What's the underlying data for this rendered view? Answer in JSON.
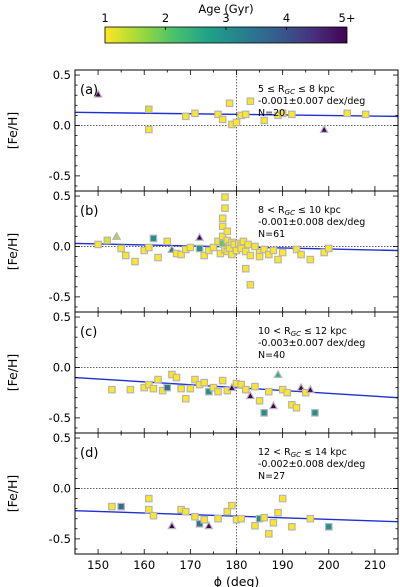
{
  "colorbar": {
    "label": "Age (Gyr)",
    "ticks": [
      "1",
      "2",
      "3",
      "4",
      "5+"
    ],
    "range": [
      1,
      5
    ],
    "colors": [
      "#fde725",
      "#a0da39",
      "#4ac16d",
      "#1fa187",
      "#277f8e",
      "#365c8d",
      "#46327e",
      "#440154"
    ]
  },
  "styles": {
    "fit_line_color": "#1f2fd0",
    "marker_edge_color": "#b5b5b5",
    "ref_line_color": "#000000"
  },
  "chart_data": [
    {
      "type": "scatter",
      "panel_label": "(a)",
      "ylabel": "[Fe/H]",
      "xlim": [
        145,
        215
      ],
      "ylim": [
        -0.65,
        0.55
      ],
      "yticks": [
        "0.5",
        "0.0",
        "-0.5"
      ],
      "annotation": [
        "5 ≤ R",
        "GC",
        " ≤ 8 kpc"
      ],
      "slope_text": "-0.001±0.007 dex/deg",
      "n_text": "N=20",
      "fit": {
        "x": [
          145,
          215
        ],
        "y": [
          0.13,
          0.09
        ]
      },
      "points": [
        {
          "x": 150,
          "y": 0.31,
          "age": 5,
          "m": "tri"
        },
        {
          "x": 161,
          "y": 0.16,
          "age": 1.2,
          "m": "sq"
        },
        {
          "x": 161,
          "y": -0.04,
          "age": 1.0,
          "m": "sq"
        },
        {
          "x": 169,
          "y": 0.09,
          "age": 1.0,
          "m": "sq"
        },
        {
          "x": 171,
          "y": 0.12,
          "age": 1.0,
          "m": "sq"
        },
        {
          "x": 176,
          "y": 0.11,
          "age": 1.0,
          "m": "sq"
        },
        {
          "x": 177,
          "y": 0.06,
          "age": 1.0,
          "m": "sq"
        },
        {
          "x": 178.5,
          "y": 0.22,
          "age": 1.0,
          "m": "sq"
        },
        {
          "x": 179,
          "y": 0.01,
          "age": 1.0,
          "m": "sq"
        },
        {
          "x": 180,
          "y": 0.03,
          "age": 1.0,
          "m": "sq"
        },
        {
          "x": 181,
          "y": 0.1,
          "age": 1.0,
          "m": "sq"
        },
        {
          "x": 182,
          "y": 0.11,
          "age": 1.0,
          "m": "sq"
        },
        {
          "x": 183,
          "y": 0.24,
          "age": 1.0,
          "m": "sq"
        },
        {
          "x": 186,
          "y": 0.05,
          "age": 1.0,
          "m": "sq"
        },
        {
          "x": 189,
          "y": 0.1,
          "age": 1.0,
          "m": "sq"
        },
        {
          "x": 190,
          "y": 0.12,
          "age": 1.0,
          "m": "sq"
        },
        {
          "x": 192,
          "y": 0.11,
          "age": 1.0,
          "m": "sq"
        },
        {
          "x": 204,
          "y": 0.12,
          "age": 1.0,
          "m": "sq"
        },
        {
          "x": 208,
          "y": 0.11,
          "age": 1.0,
          "m": "sq"
        },
        {
          "x": 199,
          "y": -0.04,
          "age": 5,
          "m": "tri"
        }
      ]
    },
    {
      "type": "scatter",
      "panel_label": "(b)",
      "ylabel": "[Fe/H]",
      "xlim": [
        145,
        215
      ],
      "ylim": [
        -0.65,
        0.55
      ],
      "yticks": [
        "0.5",
        "0.0",
        "-0.5"
      ],
      "annotation": [
        "8 < R",
        "GC",
        " ≤ 10 kpc"
      ],
      "slope_text": "-0.001±0.008 dex/deg",
      "n_text": "N=61",
      "fit": {
        "x": [
          145,
          215
        ],
        "y": [
          0.03,
          -0.04
        ]
      },
      "points": [
        {
          "x": 152,
          "y": 0.06,
          "age": 1.2,
          "m": "sq"
        },
        {
          "x": 154,
          "y": 0.1,
          "age": 1.5,
          "m": "tri"
        },
        {
          "x": 156,
          "y": -0.09,
          "age": 1.0,
          "m": "sq"
        },
        {
          "x": 158,
          "y": -0.15,
          "age": 1.0,
          "m": "sq"
        },
        {
          "x": 160,
          "y": -0.04,
          "age": 1.0,
          "m": "sq"
        },
        {
          "x": 161,
          "y": -0.01,
          "age": 1.0,
          "m": "sq"
        },
        {
          "x": 162,
          "y": 0.08,
          "age": 3.0,
          "m": "sq"
        },
        {
          "x": 163,
          "y": -0.11,
          "age": 1.0,
          "m": "sq"
        },
        {
          "x": 165,
          "y": 0.05,
          "age": 1.0,
          "m": "sq"
        },
        {
          "x": 166,
          "y": -0.03,
          "age": 3.5,
          "m": "tri"
        },
        {
          "x": 167,
          "y": -0.07,
          "age": 1.0,
          "m": "sq"
        },
        {
          "x": 168,
          "y": -0.08,
          "age": 1.0,
          "m": "sq"
        },
        {
          "x": 169,
          "y": -0.03,
          "age": 1.0,
          "m": "sq"
        },
        {
          "x": 170,
          "y": -0.01,
          "age": 1.0,
          "m": "sq"
        },
        {
          "x": 172,
          "y": 0.09,
          "age": 5,
          "m": "tri"
        },
        {
          "x": 172,
          "y": -0.02,
          "age": 3.0,
          "m": "sq"
        },
        {
          "x": 173,
          "y": -0.09,
          "age": 1.0,
          "m": "sq"
        },
        {
          "x": 174,
          "y": -0.04,
          "age": 1.0,
          "m": "sq"
        },
        {
          "x": 175,
          "y": -0.01,
          "age": 1.0,
          "m": "sq"
        },
        {
          "x": 176,
          "y": 0.05,
          "age": 1.0,
          "m": "sq"
        },
        {
          "x": 176.5,
          "y": -0.07,
          "age": 1.0,
          "m": "sq"
        },
        {
          "x": 177,
          "y": 0.28,
          "age": 1.0,
          "m": "sq"
        },
        {
          "x": 177,
          "y": 0.2,
          "age": 1.0,
          "m": "sq"
        },
        {
          "x": 177,
          "y": 0.1,
          "age": 1.0,
          "m": "sq"
        },
        {
          "x": 177,
          "y": 0.03,
          "age": 2.0,
          "m": "sq"
        },
        {
          "x": 177.5,
          "y": 0.49,
          "age": 1.0,
          "m": "sq"
        },
        {
          "x": 177.5,
          "y": 0.38,
          "age": 1.0,
          "m": "sq"
        },
        {
          "x": 177.5,
          "y": -0.03,
          "age": 1.0,
          "m": "sq"
        },
        {
          "x": 178,
          "y": 0.15,
          "age": 1.0,
          "m": "sq"
        },
        {
          "x": 178,
          "y": 0.06,
          "age": 1.0,
          "m": "sq"
        },
        {
          "x": 178,
          "y": -0.05,
          "age": 1.0,
          "m": "sq"
        },
        {
          "x": 178.5,
          "y": 0.01,
          "age": 1.0,
          "m": "sq"
        },
        {
          "x": 178.5,
          "y": -0.02,
          "age": 1.0,
          "m": "sq"
        },
        {
          "x": 179,
          "y": 0.04,
          "age": 1.0,
          "m": "sq"
        },
        {
          "x": 179,
          "y": -0.08,
          "age": 1.0,
          "m": "sq"
        },
        {
          "x": 179.5,
          "y": 0.02,
          "age": 1.0,
          "m": "sq"
        },
        {
          "x": 180,
          "y": -0.04,
          "age": 1.0,
          "m": "sq"
        },
        {
          "x": 180.5,
          "y": 0.03,
          "age": 1.0,
          "m": "sq"
        },
        {
          "x": 181,
          "y": 0.01,
          "age": 1.0,
          "m": "sq"
        },
        {
          "x": 181,
          "y": -0.02,
          "age": 1.0,
          "m": "sq"
        },
        {
          "x": 181.5,
          "y": 0.05,
          "age": 1.0,
          "m": "sq"
        },
        {
          "x": 182,
          "y": -0.05,
          "age": 1.0,
          "m": "sq"
        },
        {
          "x": 182,
          "y": -0.22,
          "age": 1.0,
          "m": "sq"
        },
        {
          "x": 182.5,
          "y": 0.02,
          "age": 1.0,
          "m": "sq"
        },
        {
          "x": 183,
          "y": -0.09,
          "age": 1.0,
          "m": "sq"
        },
        {
          "x": 183,
          "y": -0.38,
          "age": 1.0,
          "m": "sq"
        },
        {
          "x": 184,
          "y": 0.0,
          "age": 1.0,
          "m": "sq"
        },
        {
          "x": 185,
          "y": -0.06,
          "age": 1.0,
          "m": "sq"
        },
        {
          "x": 185,
          "y": -0.1,
          "age": 1.0,
          "m": "sq"
        },
        {
          "x": 186,
          "y": -0.03,
          "age": 1.0,
          "m": "sq"
        },
        {
          "x": 187,
          "y": -0.08,
          "age": 1.0,
          "m": "sq"
        },
        {
          "x": 188,
          "y": -0.04,
          "age": 1.0,
          "m": "sq"
        },
        {
          "x": 189,
          "y": -0.13,
          "age": 1.0,
          "m": "sq"
        },
        {
          "x": 190,
          "y": -0.06,
          "age": 1.0,
          "m": "sq"
        },
        {
          "x": 193,
          "y": -0.03,
          "age": 1.0,
          "m": "sq"
        },
        {
          "x": 194,
          "y": -0.08,
          "age": 1.0,
          "m": "sq"
        },
        {
          "x": 196,
          "y": -0.13,
          "age": 1.0,
          "m": "sq"
        },
        {
          "x": 199,
          "y": -0.06,
          "age": 1.0,
          "m": "sq"
        },
        {
          "x": 200,
          "y": -0.02,
          "age": 1.0,
          "m": "sq"
        },
        {
          "x": 150,
          "y": 0.02,
          "age": 1.0,
          "m": "sq"
        },
        {
          "x": 155,
          "y": -0.02,
          "age": 1.0,
          "m": "sq"
        }
      ]
    },
    {
      "type": "scatter",
      "panel_label": "(c)",
      "ylabel": "[Fe/H]",
      "xlim": [
        145,
        215
      ],
      "ylim": [
        -0.65,
        0.55
      ],
      "yticks": [
        "0.5",
        "0.0",
        "-0.5"
      ],
      "annotation": [
        "10 < R",
        "GC",
        " ≤ 12 kpc"
      ],
      "slope_text": "-0.003±0.007 dex/deg",
      "n_text": "N=40",
      "fit": {
        "x": [
          145,
          215
        ],
        "y": [
          -0.1,
          -0.3
        ]
      },
      "points": [
        {
          "x": 160,
          "y": -0.2,
          "age": 1.0,
          "m": "sq"
        },
        {
          "x": 161,
          "y": -0.17,
          "age": 1.0,
          "m": "sq"
        },
        {
          "x": 162,
          "y": -0.21,
          "age": 1.0,
          "m": "sq"
        },
        {
          "x": 163,
          "y": -0.12,
          "age": 1.0,
          "m": "sq"
        },
        {
          "x": 164,
          "y": -0.23,
          "age": 1.0,
          "m": "sq"
        },
        {
          "x": 165,
          "y": -0.2,
          "age": 3.5,
          "m": "sq"
        },
        {
          "x": 166,
          "y": -0.07,
          "age": 1.0,
          "m": "sq"
        },
        {
          "x": 167,
          "y": -0.1,
          "age": 1.0,
          "m": "sq"
        },
        {
          "x": 168,
          "y": -0.21,
          "age": 1.0,
          "m": "sq"
        },
        {
          "x": 169,
          "y": -0.31,
          "age": 1.0,
          "m": "sq"
        },
        {
          "x": 170,
          "y": -0.21,
          "age": 1.0,
          "m": "sq"
        },
        {
          "x": 171,
          "y": -0.12,
          "age": 1.0,
          "m": "sq"
        },
        {
          "x": 172,
          "y": -0.17,
          "age": 1.0,
          "m": "sq"
        },
        {
          "x": 173,
          "y": -0.15,
          "age": 1.0,
          "m": "sq"
        },
        {
          "x": 174,
          "y": -0.24,
          "age": 3.0,
          "m": "sq"
        },
        {
          "x": 175,
          "y": -0.2,
          "age": 1.0,
          "m": "sq"
        },
        {
          "x": 176,
          "y": -0.24,
          "age": 1.0,
          "m": "sq"
        },
        {
          "x": 177,
          "y": -0.13,
          "age": 1.0,
          "m": "sq"
        },
        {
          "x": 178,
          "y": -0.23,
          "age": 1.0,
          "m": "sq"
        },
        {
          "x": 179,
          "y": -0.2,
          "age": 5,
          "m": "tri"
        },
        {
          "x": 180,
          "y": -0.16,
          "age": 1.0,
          "m": "sq"
        },
        {
          "x": 181,
          "y": -0.17,
          "age": 1.0,
          "m": "sq"
        },
        {
          "x": 182,
          "y": -0.22,
          "age": 1.0,
          "m": "sq"
        },
        {
          "x": 183,
          "y": -0.28,
          "age": 5,
          "m": "tri"
        },
        {
          "x": 184,
          "y": -0.19,
          "age": 1.0,
          "m": "sq"
        },
        {
          "x": 185,
          "y": -0.33,
          "age": 1.0,
          "m": "sq"
        },
        {
          "x": 186,
          "y": -0.45,
          "age": 3.0,
          "m": "sq"
        },
        {
          "x": 187,
          "y": -0.24,
          "age": 1.0,
          "m": "sq"
        },
        {
          "x": 188,
          "y": -0.38,
          "age": 5,
          "m": "tri"
        },
        {
          "x": 189,
          "y": -0.07,
          "age": 2.5,
          "m": "tri"
        },
        {
          "x": 190,
          "y": -0.22,
          "age": 1.0,
          "m": "sq"
        },
        {
          "x": 191,
          "y": -0.25,
          "age": 1.0,
          "m": "sq"
        },
        {
          "x": 192,
          "y": -0.37,
          "age": 1.0,
          "m": "sq"
        },
        {
          "x": 193,
          "y": -0.4,
          "age": 1.0,
          "m": "sq"
        },
        {
          "x": 194,
          "y": -0.2,
          "age": 5,
          "m": "tri"
        },
        {
          "x": 195,
          "y": -0.25,
          "age": 1.0,
          "m": "sq"
        },
        {
          "x": 196,
          "y": -0.22,
          "age": 5,
          "m": "tri"
        },
        {
          "x": 197,
          "y": -0.45,
          "age": 3.0,
          "m": "sq"
        },
        {
          "x": 157,
          "y": -0.22,
          "age": 1.0,
          "m": "sq"
        },
        {
          "x": 153,
          "y": -0.22,
          "age": 1.0,
          "m": "sq"
        }
      ]
    },
    {
      "type": "scatter",
      "panel_label": "(d)",
      "ylabel": "[Fe/H]",
      "xlabel": "ϕ (deg)",
      "xlim": [
        145,
        215
      ],
      "ylim": [
        -0.65,
        0.55
      ],
      "yticks": [
        "0.5",
        "0.0",
        "-0.5"
      ],
      "xticks": [
        "150",
        "160",
        "170",
        "180",
        "190",
        "200",
        "210"
      ],
      "annotation": [
        "12 < R",
        "GC",
        " ≤ 14 kpc"
      ],
      "slope_text": "-0.002±0.008 dex/deg",
      "n_text": "N=27",
      "fit": {
        "x": [
          145,
          215
        ],
        "y": [
          -0.22,
          -0.33
        ]
      },
      "points": [
        {
          "x": 153,
          "y": -0.18,
          "age": 1.0,
          "m": "sq"
        },
        {
          "x": 155,
          "y": -0.18,
          "age": 3.5,
          "m": "sq"
        },
        {
          "x": 161,
          "y": -0.1,
          "age": 1.0,
          "m": "sq"
        },
        {
          "x": 161,
          "y": -0.21,
          "age": 1.0,
          "m": "sq"
        },
        {
          "x": 162,
          "y": -0.27,
          "age": 1.0,
          "m": "sq"
        },
        {
          "x": 166,
          "y": -0.37,
          "age": 5,
          "m": "tri"
        },
        {
          "x": 168,
          "y": -0.21,
          "age": 1.0,
          "m": "sq"
        },
        {
          "x": 169,
          "y": -0.23,
          "age": 1.0,
          "m": "sq"
        },
        {
          "x": 171,
          "y": -0.28,
          "age": 1.0,
          "m": "sq"
        },
        {
          "x": 172,
          "y": -0.35,
          "age": 3.5,
          "m": "sq"
        },
        {
          "x": 173,
          "y": -0.31,
          "age": 1.0,
          "m": "sq"
        },
        {
          "x": 174,
          "y": -0.37,
          "age": 5,
          "m": "tri"
        },
        {
          "x": 176,
          "y": -0.3,
          "age": 1.0,
          "m": "sq"
        },
        {
          "x": 178,
          "y": -0.23,
          "age": 1.0,
          "m": "sq"
        },
        {
          "x": 179,
          "y": -0.17,
          "age": 1.0,
          "m": "sq"
        },
        {
          "x": 180,
          "y": -0.31,
          "age": 1.0,
          "m": "sq"
        },
        {
          "x": 181,
          "y": -0.3,
          "age": 1.0,
          "m": "sq"
        },
        {
          "x": 184,
          "y": -0.37,
          "age": 1.0,
          "m": "sq"
        },
        {
          "x": 185,
          "y": -0.3,
          "age": 3.0,
          "m": "sq"
        },
        {
          "x": 186,
          "y": -0.29,
          "age": 1.0,
          "m": "sq"
        },
        {
          "x": 187,
          "y": -0.45,
          "age": 1.0,
          "m": "sq"
        },
        {
          "x": 188,
          "y": -0.34,
          "age": 1.0,
          "m": "sq"
        },
        {
          "x": 189,
          "y": -0.24,
          "age": 1.0,
          "m": "sq"
        },
        {
          "x": 190,
          "y": -0.1,
          "age": 1.0,
          "m": "sq"
        },
        {
          "x": 192,
          "y": -0.38,
          "age": 1.0,
          "m": "sq"
        },
        {
          "x": 196,
          "y": -0.3,
          "age": 1.0,
          "m": "sq"
        },
        {
          "x": 200,
          "y": -0.38,
          "age": 3.0,
          "m": "sq"
        }
      ]
    }
  ]
}
